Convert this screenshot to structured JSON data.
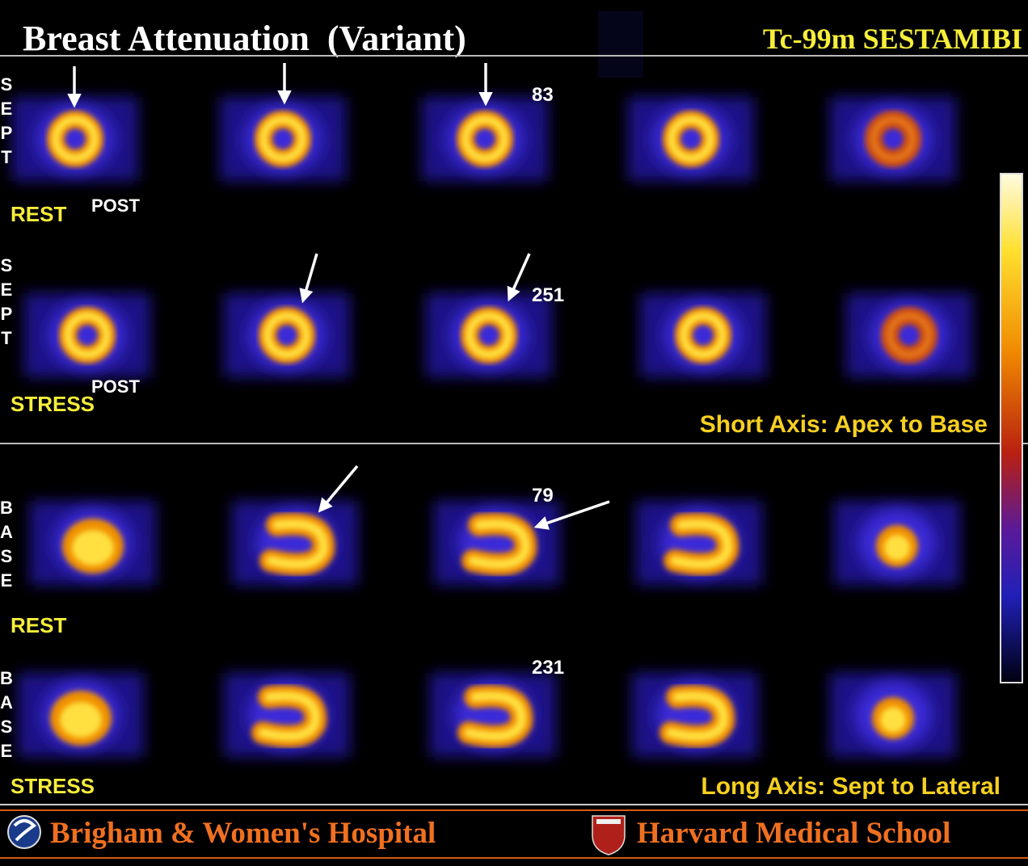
{
  "header": {
    "title": "Breast Attenuation  (Variant)",
    "tracer": "Tc-99m SESTAMIBI"
  },
  "short_axis": {
    "caption": "Short Axis: Apex to Base",
    "rows": [
      {
        "side_letters": [
          "S",
          "E",
          "P",
          "T"
        ],
        "label": "REST",
        "orientation": "POST",
        "count": 83
      },
      {
        "side_letters": [
          "S",
          "E",
          "P",
          "T"
        ],
        "label": "STRESS",
        "orientation": "POST",
        "count": 251
      }
    ]
  },
  "long_axis": {
    "caption": "Long Axis: Sept to Lateral",
    "rows": [
      {
        "side_letters": [
          "B",
          "A",
          "S",
          "E"
        ],
        "label": "REST",
        "count": 79
      },
      {
        "side_letters": [
          "B",
          "A",
          "S",
          "E"
        ],
        "label": "STRESS",
        "count": 231
      }
    ]
  },
  "footer": {
    "left": "Brigham & Women's Hospital",
    "right": "Harvard Medical School"
  }
}
